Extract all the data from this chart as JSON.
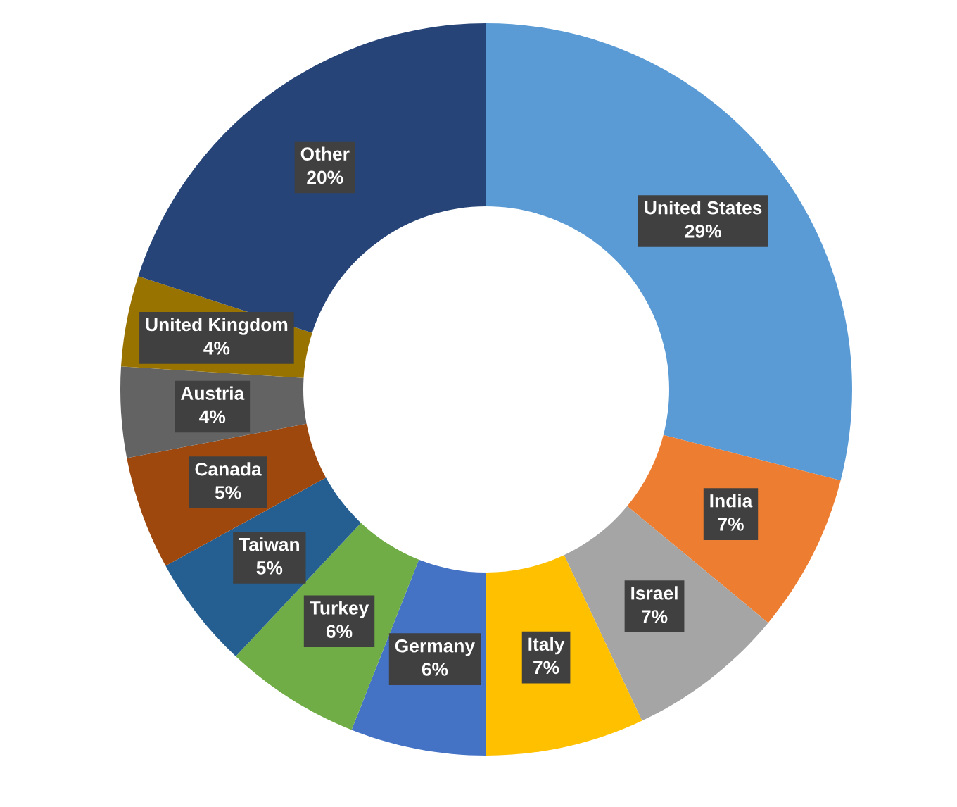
{
  "chart_data": {
    "type": "donut",
    "categories": [
      "United States",
      "India",
      "Israel",
      "Italy",
      "Germany",
      "Turkey",
      "Taiwan",
      "Canada",
      "Austria",
      "United Kingdom",
      "Other"
    ],
    "values": [
      29,
      7,
      7,
      7,
      6,
      6,
      5,
      5,
      4,
      4,
      20
    ],
    "colors": [
      "#5b9bd5",
      "#ed7d31",
      "#a5a5a5",
      "#ffc000",
      "#4472c4",
      "#70ad47",
      "#255e91",
      "#9e480e",
      "#636363",
      "#997300",
      "#264478"
    ],
    "value_labels": [
      "29%",
      "7%",
      "7%",
      "7%",
      "6%",
      "6%",
      "5%",
      "5%",
      "4%",
      "4%",
      "20%"
    ]
  }
}
